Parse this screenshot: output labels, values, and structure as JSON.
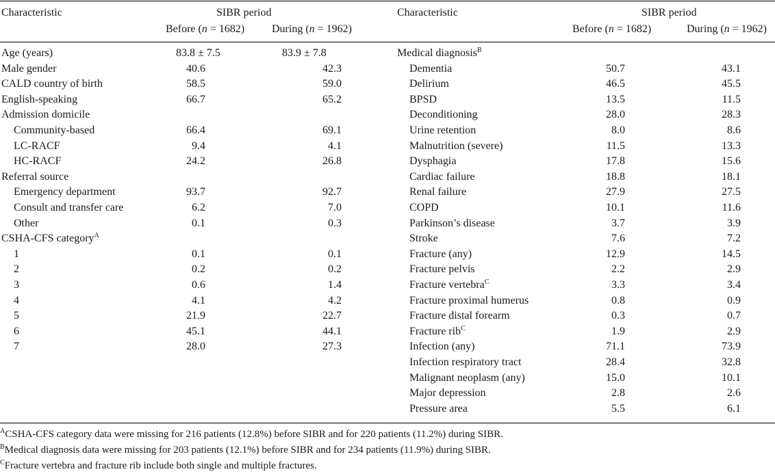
{
  "header": {
    "characteristic_label": "Characteristic",
    "period_label": "SIBR period",
    "before_label": "Before (",
    "during_label": "During (",
    "n_symbol": "n",
    "before_n": " = 1682)",
    "during_n": " = 1962)"
  },
  "left_rows": [
    {
      "label": "Age (years)",
      "indent": 0,
      "before": "83.8 ± 7.5",
      "during": "83.9 ± 7.8"
    },
    {
      "label": "Male gender",
      "indent": 0,
      "before": "40.6",
      "during": "42.3"
    },
    {
      "label": "CALD country of birth",
      "indent": 0,
      "before": "58.5",
      "during": "59.0"
    },
    {
      "label": "English-speaking",
      "indent": 0,
      "before": "66.7",
      "during": "65.2"
    },
    {
      "label": "Admission domicile",
      "indent": 0,
      "before": "",
      "during": ""
    },
    {
      "label": "Community-based",
      "indent": 1,
      "before": "66.4",
      "during": "69.1"
    },
    {
      "label": "LC-RACF",
      "indent": 1,
      "before": "9.4",
      "during": "4.1"
    },
    {
      "label": "HC-RACF",
      "indent": 1,
      "before": "24.2",
      "during": "26.8"
    },
    {
      "label": "Referral source",
      "indent": 0,
      "before": "",
      "during": ""
    },
    {
      "label": "Emergency department",
      "indent": 1,
      "before": "93.7",
      "during": "92.7"
    },
    {
      "label": "Consult and transfer care",
      "indent": 1,
      "before": "6.2",
      "during": "7.0"
    },
    {
      "label": "Other",
      "indent": 1,
      "before": "0.1",
      "during": "0.3"
    },
    {
      "label": "CSHA-CFS category",
      "sup": "A",
      "indent": 0,
      "before": "",
      "during": ""
    },
    {
      "label": "1",
      "indent": 1,
      "before": "0.1",
      "during": "0.1"
    },
    {
      "label": "2",
      "indent": 1,
      "before": "0.2",
      "during": "0.2"
    },
    {
      "label": "3",
      "indent": 1,
      "before": "0.6",
      "during": "1.4"
    },
    {
      "label": "4",
      "indent": 1,
      "before": "4.1",
      "during": "4.2"
    },
    {
      "label": "5",
      "indent": 1,
      "before": "21.9",
      "during": "22.7"
    },
    {
      "label": "6",
      "indent": 1,
      "before": "45.1",
      "during": "44.1"
    },
    {
      "label": "7",
      "indent": 1,
      "before": "28.0",
      "during": "27.3"
    }
  ],
  "right_rows": [
    {
      "label": "Medical diagnosis",
      "sup": "B",
      "indent": 0,
      "before": "",
      "during": ""
    },
    {
      "label": "Dementia",
      "indent": 1,
      "before": "50.7",
      "during": "43.1"
    },
    {
      "label": "Delirium",
      "indent": 1,
      "before": "46.5",
      "during": "45.5"
    },
    {
      "label": "BPSD",
      "indent": 1,
      "before": "13.5",
      "during": "11.5"
    },
    {
      "label": "Deconditioning",
      "indent": 1,
      "before": "28.0",
      "during": "28.3"
    },
    {
      "label": "Urine retention",
      "indent": 1,
      "before": "8.0",
      "during": "8.6"
    },
    {
      "label": "Malnutrition (severe)",
      "indent": 1,
      "before": "11.5",
      "during": "13.3"
    },
    {
      "label": "Dysphagia",
      "indent": 1,
      "before": "17.8",
      "during": "15.6"
    },
    {
      "label": "Cardiac failure",
      "indent": 1,
      "before": "18.8",
      "during": "18.1"
    },
    {
      "label": "Renal failure",
      "indent": 1,
      "before": "27.9",
      "during": "27.5"
    },
    {
      "label": "COPD",
      "indent": 1,
      "before": "10.1",
      "during": "11.6"
    },
    {
      "label": "Parkinson’s disease",
      "indent": 1,
      "before": "3.7",
      "during": "3.9"
    },
    {
      "label": "Stroke",
      "indent": 1,
      "before": "7.6",
      "during": "7.2"
    },
    {
      "label": "Fracture (any)",
      "indent": 1,
      "before": "12.9",
      "during": "14.5"
    },
    {
      "label": "Fracture pelvis",
      "indent": 1,
      "before": "2.2",
      "during": "2.9"
    },
    {
      "label": "Fracture vertebra",
      "sup": "C",
      "indent": 1,
      "before": "3.3",
      "during": "3.4"
    },
    {
      "label": "Fracture proximal humerus",
      "indent": 1,
      "before": "0.8",
      "during": "0.9"
    },
    {
      "label": "Fracture distal forearm",
      "indent": 1,
      "before": "0.3",
      "during": "0.7"
    },
    {
      "label": "Fracture rib",
      "sup": "C",
      "indent": 1,
      "before": "1.9",
      "during": "2.9"
    },
    {
      "label": "Infection (any)",
      "indent": 1,
      "before": "71.1",
      "during": "73.9"
    },
    {
      "label": "Infection respiratory tract",
      "indent": 1,
      "before": "28.4",
      "during": "32.8"
    },
    {
      "label": "Malignant neoplasm (any)",
      "indent": 1,
      "before": "15.0",
      "during": "10.1"
    },
    {
      "label": "Major depression",
      "indent": 1,
      "before": "2.8",
      "during": "2.6"
    },
    {
      "label": "Pressure area",
      "indent": 1,
      "before": "5.5",
      "during": "6.1"
    }
  ],
  "footnotes": [
    {
      "mark": "A",
      "text": "CSHA-CFS category data were missing for 216 patients (12.8%) before SIBR and for 220 patients (11.2%) during SIBR."
    },
    {
      "mark": "B",
      "text": "Medical diagnosis data were missing for 203 patients (12.1%) before SIBR and for 234 patients (11.9%) during SIBR."
    },
    {
      "mark": "C",
      "text": "Fracture vertebra and fracture rib include both single and multiple fractures."
    }
  ]
}
